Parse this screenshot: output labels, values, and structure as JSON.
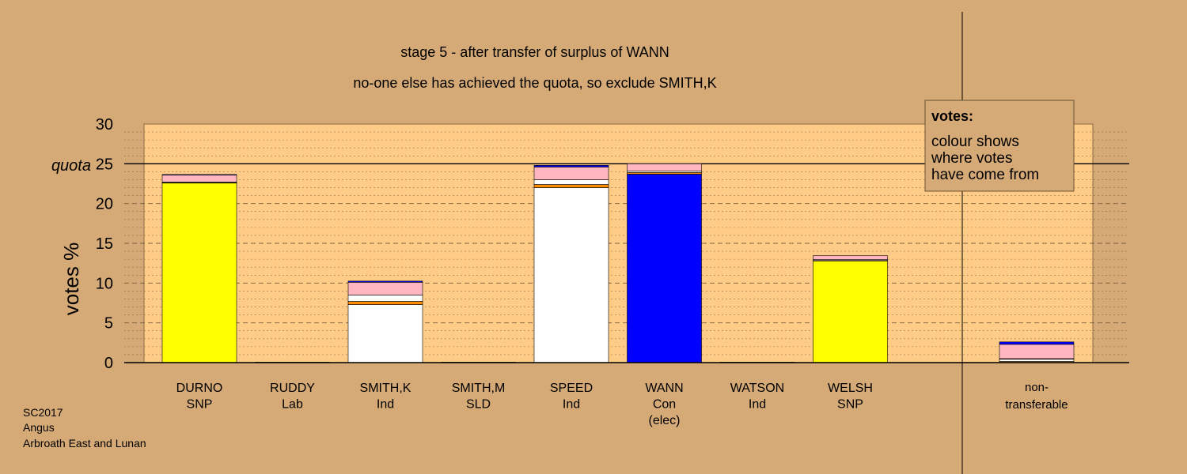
{
  "chart_data": {
    "type": "bar",
    "stacked": true,
    "title": "stage 5 - after transfer of surplus of WANN",
    "subtitle": "no-one else has achieved the quota, so exclude SMITH,K",
    "ylabel": "votes %",
    "ylim": [
      0,
      30
    ],
    "yticks": [
      "0",
      "5",
      "10",
      "15",
      "20",
      "25",
      "30"
    ],
    "quota_label": "quota",
    "quota": 25,
    "grid": true,
    "legend": {
      "heading": "votes:",
      "lines": [
        "colour shows",
        "where votes",
        "have come from"
      ],
      "position": "top-right"
    },
    "categories": [
      {
        "name": "DURNO",
        "party": "SNP",
        "note": ""
      },
      {
        "name": "RUDDY",
        "party": "Lab",
        "note": ""
      },
      {
        "name": "SMITH,K",
        "party": "Ind",
        "note": ""
      },
      {
        "name": "SMITH,M",
        "party": "SLD",
        "note": ""
      },
      {
        "name": "SPEED",
        "party": "Ind",
        "note": ""
      },
      {
        "name": "WANN",
        "party": "Con",
        "note": "(elec)"
      },
      {
        "name": "WATSON",
        "party": "Ind",
        "note": ""
      },
      {
        "name": "WELSH",
        "party": "SNP",
        "note": ""
      }
    ],
    "nontransferable": {
      "label_line1": "non-",
      "label_line2": "transferable",
      "segments": [
        {
          "color": "#ff8c00",
          "value": 0.15
        },
        {
          "color": "#ffffff",
          "value": 0.3
        },
        {
          "color": "#ff0000",
          "value": 0.05
        },
        {
          "color": "#ffb6c1",
          "value": 1.8
        },
        {
          "color": "#0000ff",
          "value": 0.3
        }
      ]
    },
    "stacks": [
      [
        {
          "color": "#ffff00",
          "value": 22.6
        },
        {
          "color": "#ff8c00",
          "value": 0.05
        },
        {
          "color": "#ffffff",
          "value": 0.05
        },
        {
          "color": "#ffb6c1",
          "value": 0.9
        },
        {
          "color": "#0000ff",
          "value": 0.05
        }
      ],
      [
        {
          "color": "#ff0000",
          "value": 0.05
        }
      ],
      [
        {
          "color": "#ffffff",
          "value": 7.3
        },
        {
          "color": "#ff8c00",
          "value": 0.4
        },
        {
          "color": "#ffffff",
          "value": 0.8
        },
        {
          "color": "#ffb6c1",
          "value": 1.6
        },
        {
          "color": "#0000ff",
          "value": 0.15
        }
      ],
      [
        {
          "color": "#ff8c00",
          "value": 0.05
        }
      ],
      [
        {
          "color": "#ffffff",
          "value": 22.0
        },
        {
          "color": "#ff8c00",
          "value": 0.4
        },
        {
          "color": "#ffffff",
          "value": 0.6
        },
        {
          "color": "#ffb6c1",
          "value": 1.6
        },
        {
          "color": "#0000ff",
          "value": 0.2
        }
      ],
      [
        {
          "color": "#0000ff",
          "value": 23.7
        },
        {
          "color": "#ff8c00",
          "value": 0.2
        },
        {
          "color": "#ffffff",
          "value": 0.2
        },
        {
          "color": "#ffb6c1",
          "value": 0.9
        }
      ],
      [
        {
          "color": "#ffffff",
          "value": 0.05
        }
      ],
      [
        {
          "color": "#ffff00",
          "value": 12.8
        },
        {
          "color": "#ff8c00",
          "value": 0.05
        },
        {
          "color": "#ffffff",
          "value": 0.1
        },
        {
          "color": "#ffb6c1",
          "value": 0.5
        }
      ]
    ],
    "colors": {
      "background": "#d5aa77",
      "plot_area": "#ffcc88"
    }
  },
  "footer": {
    "line1": "SC2017",
    "line2": "Angus",
    "line3": "Arbroath East and Lunan"
  }
}
